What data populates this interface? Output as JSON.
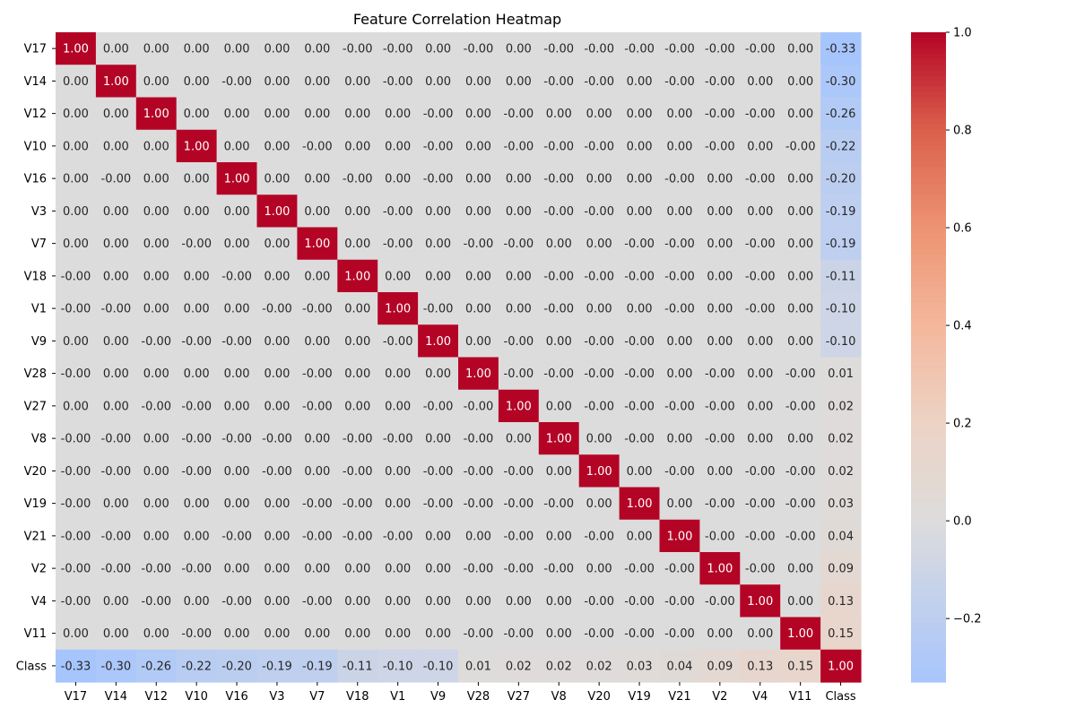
{
  "chart_data": {
    "type": "heatmap",
    "title": "Feature Correlation Heatmap",
    "xlabel": "",
    "ylabel": "",
    "rows": [
      "V17",
      "V14",
      "V12",
      "V10",
      "V16",
      "V3",
      "V7",
      "V18",
      "V1",
      "V9",
      "V28",
      "V27",
      "V8",
      "V20",
      "V19",
      "V21",
      "V2",
      "V4",
      "V11",
      "Class"
    ],
    "columns": [
      "V17",
      "V14",
      "V12",
      "V10",
      "V16",
      "V3",
      "V7",
      "V18",
      "V1",
      "V9",
      "V28",
      "V27",
      "V8",
      "V20",
      "V19",
      "V21",
      "V2",
      "V4",
      "V11",
      "Class"
    ],
    "cell_text": [
      [
        "1.00",
        "0.00",
        "0.00",
        "0.00",
        "0.00",
        "0.00",
        "0.00",
        "-0.00",
        "-0.00",
        "0.00",
        "-0.00",
        "0.00",
        "-0.00",
        "-0.00",
        "-0.00",
        "-0.00",
        "-0.00",
        "-0.00",
        "0.00",
        "-0.33"
      ],
      [
        "0.00",
        "1.00",
        "0.00",
        "0.00",
        "-0.00",
        "0.00",
        "0.00",
        "0.00",
        "-0.00",
        "0.00",
        "0.00",
        "0.00",
        "-0.00",
        "-0.00",
        "0.00",
        "-0.00",
        "-0.00",
        "0.00",
        "0.00",
        "-0.30"
      ],
      [
        "0.00",
        "0.00",
        "1.00",
        "0.00",
        "0.00",
        "0.00",
        "0.00",
        "0.00",
        "0.00",
        "-0.00",
        "0.00",
        "-0.00",
        "0.00",
        "0.00",
        "0.00",
        "0.00",
        "-0.00",
        "-0.00",
        "0.00",
        "-0.26"
      ],
      [
        "0.00",
        "0.00",
        "0.00",
        "1.00",
        "0.00",
        "0.00",
        "-0.00",
        "0.00",
        "0.00",
        "-0.00",
        "0.00",
        "-0.00",
        "-0.00",
        "-0.00",
        "0.00",
        "0.00",
        "-0.00",
        "0.00",
        "-0.00",
        "-0.22"
      ],
      [
        "0.00",
        "-0.00",
        "0.00",
        "0.00",
        "1.00",
        "0.00",
        "0.00",
        "-0.00",
        "0.00",
        "-0.00",
        "0.00",
        "0.00",
        "-0.00",
        "0.00",
        "0.00",
        "-0.00",
        "0.00",
        "-0.00",
        "0.00",
        "-0.20"
      ],
      [
        "0.00",
        "0.00",
        "0.00",
        "0.00",
        "0.00",
        "1.00",
        "0.00",
        "0.00",
        "-0.00",
        "0.00",
        "0.00",
        "0.00",
        "-0.00",
        "-0.00",
        "0.00",
        "0.00",
        "0.00",
        "0.00",
        "0.00",
        "-0.19"
      ],
      [
        "0.00",
        "0.00",
        "0.00",
        "-0.00",
        "0.00",
        "0.00",
        "1.00",
        "0.00",
        "-0.00",
        "0.00",
        "-0.00",
        "-0.00",
        "0.00",
        "0.00",
        "-0.00",
        "-0.00",
        "0.00",
        "-0.00",
        "0.00",
        "-0.19"
      ],
      [
        "-0.00",
        "0.00",
        "0.00",
        "0.00",
        "-0.00",
        "0.00",
        "0.00",
        "1.00",
        "0.00",
        "0.00",
        "0.00",
        "0.00",
        "-0.00",
        "-0.00",
        "-0.00",
        "-0.00",
        "0.00",
        "-0.00",
        "0.00",
        "-0.11"
      ],
      [
        "-0.00",
        "-0.00",
        "0.00",
        "0.00",
        "0.00",
        "-0.00",
        "-0.00",
        "0.00",
        "1.00",
        "-0.00",
        "0.00",
        "0.00",
        "-0.00",
        "0.00",
        "0.00",
        "-0.00",
        "0.00",
        "-0.00",
        "0.00",
        "-0.10"
      ],
      [
        "0.00",
        "0.00",
        "-0.00",
        "-0.00",
        "-0.00",
        "0.00",
        "0.00",
        "0.00",
        "-0.00",
        "1.00",
        "0.00",
        "-0.00",
        "0.00",
        "-0.00",
        "-0.00",
        "0.00",
        "0.00",
        "0.00",
        "0.00",
        "-0.10"
      ],
      [
        "-0.00",
        "0.00",
        "0.00",
        "0.00",
        "0.00",
        "0.00",
        "-0.00",
        "0.00",
        "0.00",
        "0.00",
        "1.00",
        "-0.00",
        "-0.00",
        "-0.00",
        "-0.00",
        "0.00",
        "-0.00",
        "0.00",
        "-0.00",
        "0.01"
      ],
      [
        "0.00",
        "0.00",
        "-0.00",
        "-0.00",
        "0.00",
        "0.00",
        "-0.00",
        "0.00",
        "0.00",
        "-0.00",
        "-0.00",
        "1.00",
        "0.00",
        "-0.00",
        "-0.00",
        "-0.00",
        "-0.00",
        "0.00",
        "-0.00",
        "0.02"
      ],
      [
        "-0.00",
        "-0.00",
        "0.00",
        "-0.00",
        "-0.00",
        "-0.00",
        "0.00",
        "-0.00",
        "-0.00",
        "0.00",
        "-0.00",
        "0.00",
        "1.00",
        "0.00",
        "-0.00",
        "0.00",
        "-0.00",
        "0.00",
        "0.00",
        "0.02"
      ],
      [
        "-0.00",
        "-0.00",
        "0.00",
        "-0.00",
        "0.00",
        "-0.00",
        "0.00",
        "-0.00",
        "0.00",
        "-0.00",
        "-0.00",
        "-0.00",
        "0.00",
        "1.00",
        "0.00",
        "-0.00",
        "0.00",
        "-0.00",
        "-0.00",
        "0.02"
      ],
      [
        "-0.00",
        "0.00",
        "0.00",
        "0.00",
        "0.00",
        "0.00",
        "-0.00",
        "-0.00",
        "0.00",
        "-0.00",
        "-0.00",
        "-0.00",
        "-0.00",
        "0.00",
        "1.00",
        "0.00",
        "-0.00",
        "-0.00",
        "-0.00",
        "0.03"
      ],
      [
        "-0.00",
        "-0.00",
        "0.00",
        "0.00",
        "-0.00",
        "0.00",
        "-0.00",
        "-0.00",
        "-0.00",
        "0.00",
        "0.00",
        "-0.00",
        "0.00",
        "-0.00",
        "0.00",
        "1.00",
        "-0.00",
        "-0.00",
        "-0.00",
        "0.04"
      ],
      [
        "-0.00",
        "-0.00",
        "-0.00",
        "-0.00",
        "0.00",
        "0.00",
        "0.00",
        "0.00",
        "0.00",
        "0.00",
        "-0.00",
        "-0.00",
        "-0.00",
        "0.00",
        "-0.00",
        "-0.00",
        "1.00",
        "-0.00",
        "0.00",
        "0.09"
      ],
      [
        "-0.00",
        "0.00",
        "-0.00",
        "0.00",
        "-0.00",
        "0.00",
        "-0.00",
        "0.00",
        "0.00",
        "0.00",
        "0.00",
        "0.00",
        "0.00",
        "-0.00",
        "-0.00",
        "-0.00",
        "-0.00",
        "1.00",
        "0.00",
        "0.13"
      ],
      [
        "0.00",
        "0.00",
        "0.00",
        "-0.00",
        "0.00",
        "0.00",
        "0.00",
        "0.00",
        "0.00",
        "0.00",
        "-0.00",
        "-0.00",
        "0.00",
        "-0.00",
        "-0.00",
        "-0.00",
        "0.00",
        "0.00",
        "1.00",
        "0.15"
      ],
      [
        "-0.33",
        "-0.30",
        "-0.26",
        "-0.22",
        "-0.20",
        "-0.19",
        "-0.19",
        "-0.11",
        "-0.10",
        "-0.10",
        "0.01",
        "0.02",
        "0.02",
        "0.02",
        "0.03",
        "0.04",
        "0.09",
        "0.13",
        "0.15",
        "1.00"
      ]
    ],
    "colorbar": {
      "range": [
        -0.33,
        1.0
      ],
      "ticks": [
        -0.2,
        0.0,
        0.2,
        0.4,
        0.6,
        0.8,
        1.0
      ],
      "tick_labels": [
        "−0.2",
        "0.0",
        "0.2",
        "0.4",
        "0.6",
        "0.8",
        "1.0"
      ],
      "colormap": "coolwarm",
      "center": 0.0
    },
    "colors": {
      "low": "#a7c5fd",
      "mid": "#dddcdc",
      "high": "#b40426"
    }
  }
}
